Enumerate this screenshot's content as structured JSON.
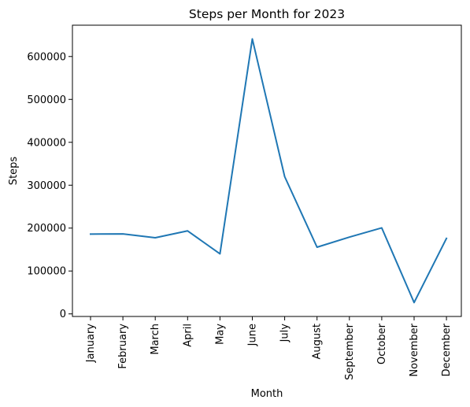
{
  "chart_data": {
    "type": "line",
    "title": "Steps per Month for 2023",
    "xlabel": "Month",
    "ylabel": "Steps",
    "categories": [
      "January",
      "February",
      "March",
      "April",
      "May",
      "June",
      "July",
      "August",
      "September",
      "October",
      "November",
      "December"
    ],
    "values": [
      186000,
      186500,
      177500,
      193500,
      140000,
      641000,
      320000,
      155500,
      179000,
      200500,
      26500,
      176000
    ],
    "ylim": [
      -6000,
      673000
    ],
    "yticks": [
      0,
      100000,
      200000,
      300000,
      400000,
      500000,
      600000
    ],
    "ytick_labels": [
      "0",
      "100000",
      "200000",
      "300000",
      "400000",
      "500000",
      "600000"
    ],
    "grid": false,
    "line_color": "#1f77b4"
  }
}
